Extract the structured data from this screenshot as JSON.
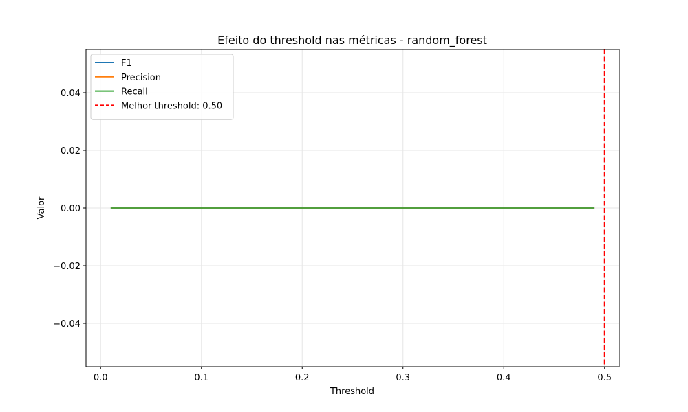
{
  "chart_data": {
    "type": "line",
    "title": "Efeito do threshold nas métricas - random_forest",
    "xlabel": "Threshold",
    "ylabel": "Valor",
    "xlim": [
      -0.0145,
      0.5145
    ],
    "ylim": [
      -0.055,
      0.055
    ],
    "xticks": [
      0.0,
      0.1,
      0.2,
      0.3,
      0.4,
      0.5
    ],
    "xtick_labels": [
      "0.0",
      "0.1",
      "0.2",
      "0.3",
      "0.4",
      "0.5"
    ],
    "yticks": [
      -0.04,
      -0.02,
      0.0,
      0.02,
      0.04
    ],
    "ytick_labels": [
      "−0.04",
      "−0.02",
      "0.00",
      "0.02",
      "0.04"
    ],
    "grid": true,
    "legend_position": "upper-left",
    "series": [
      {
        "name": "F1",
        "color": "#1f77b4",
        "x": [
          0.01,
          0.49
        ],
        "y": [
          0.0,
          0.0
        ]
      },
      {
        "name": "Precision",
        "color": "#ff7f0e",
        "x": [
          0.01,
          0.49
        ],
        "y": [
          0.0,
          0.0
        ]
      },
      {
        "name": "Recall",
        "color": "#2ca02c",
        "x": [
          0.01,
          0.49
        ],
        "y": [
          0.0,
          0.0
        ]
      }
    ],
    "vlines": [
      {
        "name": "Melhor threshold: 0.50",
        "x": 0.5,
        "color": "#ff0000",
        "style": "dashed"
      }
    ]
  }
}
